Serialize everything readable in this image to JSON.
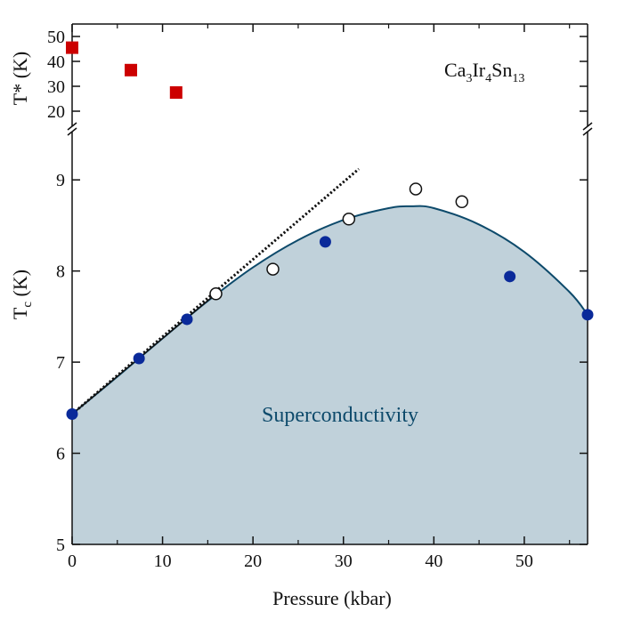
{
  "chart_data": {
    "type": "scatter",
    "annotation": "Superconductivity",
    "compound": {
      "base": [
        "Ca",
        "Ir",
        "Sn"
      ],
      "subs": [
        "3",
        "4",
        "13"
      ]
    },
    "xlabel": "Pressure (kbar)",
    "xlim": [
      0,
      57
    ],
    "xticks": [
      0,
      10,
      20,
      30,
      40,
      50
    ],
    "tstar_axis": {
      "label": "T* (K)",
      "yticks": [
        20,
        30,
        40,
        50
      ],
      "ylim": [
        15,
        55
      ],
      "series": [
        {
          "marker": "filled-square",
          "color": "#cc0000",
          "points": [
            [
              0,
              45.5
            ],
            [
              6.5,
              36.5
            ],
            [
              11.5,
              27.5
            ]
          ]
        }
      ]
    },
    "tc_axis": {
      "label_main": "T",
      "label_sub": "c",
      "label_unit": " (K)",
      "yticks": [
        5,
        6,
        7,
        8,
        9
      ],
      "ylim": [
        5,
        9.5
      ],
      "series": [
        {
          "marker": "filled-circle",
          "color": "#0a2a9a",
          "points": [
            [
              0,
              6.43
            ],
            [
              7.4,
              7.04
            ],
            [
              12.7,
              7.47
            ],
            [
              28,
              8.32
            ],
            [
              48.4,
              7.94
            ],
            [
              57,
              7.52
            ]
          ]
        },
        {
          "marker": "open-circle",
          "color": "#111111",
          "points": [
            [
              15.9,
              7.75
            ],
            [
              22.2,
              8.02
            ],
            [
              30.6,
              8.57
            ],
            [
              38,
              8.9
            ],
            [
              43.1,
              8.76
            ]
          ]
        }
      ],
      "phase_boundary": {
        "color": "#0d4a6b",
        "fill": "#c0d1da",
        "points": [
          [
            0,
            6.43
          ],
          [
            5,
            6.84
          ],
          [
            10,
            7.26
          ],
          [
            15,
            7.67
          ],
          [
            20,
            8.04
          ],
          [
            25,
            8.34
          ],
          [
            30,
            8.56
          ],
          [
            35,
            8.69
          ],
          [
            37.5,
            8.71
          ],
          [
            40,
            8.69
          ],
          [
            45,
            8.51
          ],
          [
            50,
            8.21
          ],
          [
            55,
            7.77
          ],
          [
            57,
            7.52
          ]
        ]
      },
      "linear_fit": {
        "style": "dotted",
        "color": "#111111",
        "from": [
          0,
          6.43
        ],
        "to": [
          31.7,
          9.12
        ]
      }
    }
  }
}
